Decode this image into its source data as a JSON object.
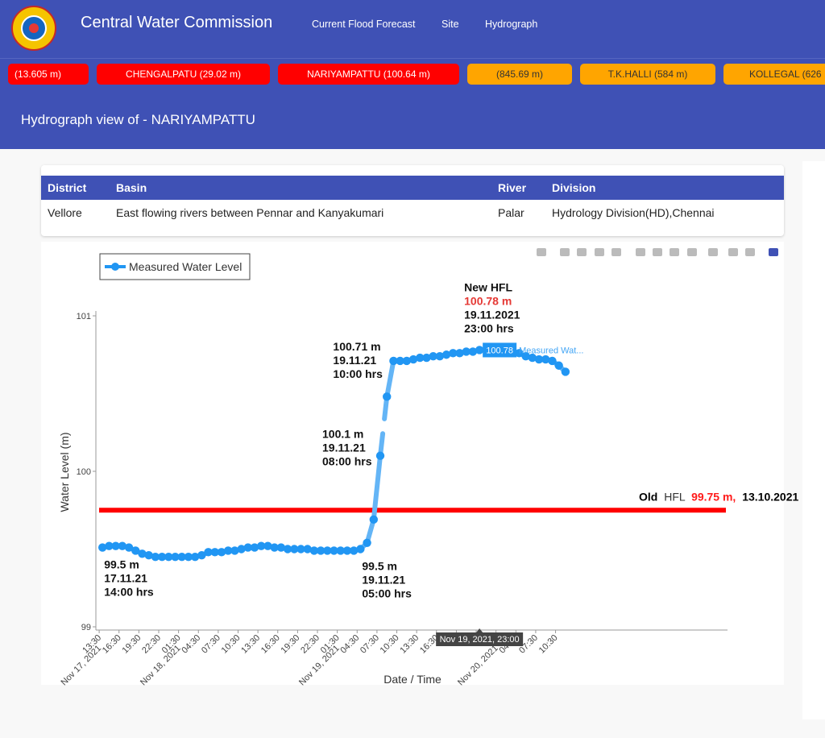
{
  "header": {
    "brand": "Central Water Commission",
    "nav": [
      "Current Flood Forecast",
      "Site",
      "Hydrograph"
    ]
  },
  "ticker": [
    {
      "text": "(13.605 m)",
      "level": "red"
    },
    {
      "text": "CHENGALPATU (29.02 m)",
      "level": "red"
    },
    {
      "text": "NARIYAMPATTU (100.64 m)",
      "level": "red"
    },
    {
      "text": "(845.69 m)",
      "level": "orange"
    },
    {
      "text": "T.K.HALLI (584 m)",
      "level": "orange"
    },
    {
      "text": "KOLLEGAL (626",
      "level": "orange"
    }
  ],
  "colors": {
    "primary": "#3f51b5",
    "alert_red": "#ff0000",
    "warn_orange": "#ffa500",
    "series": "#2196f3"
  },
  "page_heading": "Hydrograph view of - NARIYAMPATTU",
  "station_table": {
    "headers": [
      "District",
      "Basin",
      "River",
      "Division"
    ],
    "row": [
      "Vellore",
      "East flowing rivers between Pennar and Kanyakumari",
      "Palar",
      "Hydrology Division(HD),Chennai"
    ]
  },
  "toolbar_icons": [
    "camera-icon",
    "zoom-icon",
    "pan-icon",
    "box-select-icon",
    "lasso-select-icon",
    "zoom-in-icon",
    "zoom-out-icon",
    "autoscale-icon",
    "reset-axes-icon",
    "spike-lines-icon",
    "hover-closest-icon",
    "hover-compare-icon",
    "plotly-logo-icon"
  ],
  "chart_data": {
    "type": "line",
    "legend": "Measured Water Level",
    "legend_position": "top-left",
    "xlabel": "Date / Time",
    "ylabel": "Water Level (m)",
    "ylim": [
      99,
      101
    ],
    "yticks": [
      99,
      100,
      101
    ],
    "x_range": [
      "2021-11-17 13:00",
      "2021-11-21 12:30"
    ],
    "x_ticks": [
      {
        "t": "2021-11-17 13:30",
        "label": "13:30",
        "sub": "Nov 17, 2021"
      },
      {
        "t": "2021-11-17 16:30",
        "label": "16:30",
        "sub": ""
      },
      {
        "t": "2021-11-17 19:30",
        "label": "19:30",
        "sub": ""
      },
      {
        "t": "2021-11-17 22:30",
        "label": "22:30",
        "sub": ""
      },
      {
        "t": "2021-11-18 01:30",
        "label": "01:30",
        "sub": "Nov 18, 2021"
      },
      {
        "t": "2021-11-18 04:30",
        "label": "04:30",
        "sub": ""
      },
      {
        "t": "2021-11-18 07:30",
        "label": "07:30",
        "sub": ""
      },
      {
        "t": "2021-11-18 10:30",
        "label": "10:30",
        "sub": ""
      },
      {
        "t": "2021-11-18 13:30",
        "label": "13:30",
        "sub": ""
      },
      {
        "t": "2021-11-18 16:30",
        "label": "16:30",
        "sub": ""
      },
      {
        "t": "2021-11-18 19:30",
        "label": "19:30",
        "sub": ""
      },
      {
        "t": "2021-11-18 22:30",
        "label": "22:30",
        "sub": ""
      },
      {
        "t": "2021-11-19 01:30",
        "label": "01:30",
        "sub": "Nov 19, 2021"
      },
      {
        "t": "2021-11-19 04:30",
        "label": "04:30",
        "sub": ""
      },
      {
        "t": "2021-11-19 07:30",
        "label": "07:30",
        "sub": ""
      },
      {
        "t": "2021-11-19 10:30",
        "label": "10:30",
        "sub": ""
      },
      {
        "t": "2021-11-19 13:30",
        "label": "13:30",
        "sub": ""
      },
      {
        "t": "2021-11-19 16:30",
        "label": "16:30",
        "sub": ""
      },
      {
        "t": "2021-11-19 19:30",
        "label": "19",
        "sub": ""
      },
      {
        "t": "2021-11-19 22:30",
        "label": "22",
        "sub": ""
      },
      {
        "t": "2021-11-20 01:30",
        "label": "01:",
        "sub": "Nov 20, 2021"
      },
      {
        "t": "2021-11-20 04:30",
        "label": "04:30",
        "sub": ""
      },
      {
        "t": "2021-11-20 07:30",
        "label": "07:30",
        "sub": ""
      },
      {
        "t": "2021-11-20 10:30",
        "label": "10:30",
        "sub": ""
      }
    ],
    "series": [
      {
        "name": "Measured Water Level",
        "x": [
          "2021-11-17 14:00",
          "2021-11-17 15:00",
          "2021-11-17 16:00",
          "2021-11-17 17:00",
          "2021-11-17 18:00",
          "2021-11-17 19:00",
          "2021-11-17 20:00",
          "2021-11-17 21:00",
          "2021-11-17 22:00",
          "2021-11-17 23:00",
          "2021-11-18 00:00",
          "2021-11-18 01:00",
          "2021-11-18 02:00",
          "2021-11-18 03:00",
          "2021-11-18 04:00",
          "2021-11-18 05:00",
          "2021-11-18 06:00",
          "2021-11-18 07:00",
          "2021-11-18 08:00",
          "2021-11-18 09:00",
          "2021-11-18 10:00",
          "2021-11-18 11:00",
          "2021-11-18 12:00",
          "2021-11-18 13:00",
          "2021-11-18 14:00",
          "2021-11-18 15:00",
          "2021-11-18 16:00",
          "2021-11-18 17:00",
          "2021-11-18 18:00",
          "2021-11-18 19:00",
          "2021-11-18 20:00",
          "2021-11-18 21:00",
          "2021-11-18 22:00",
          "2021-11-18 23:00",
          "2021-11-19 00:00",
          "2021-11-19 01:00",
          "2021-11-19 02:00",
          "2021-11-19 03:00",
          "2021-11-19 04:00",
          "2021-11-19 05:00",
          "2021-11-19 06:00",
          "2021-11-19 07:00",
          "2021-11-19 08:00",
          "2021-11-19 09:00",
          "2021-11-19 10:00",
          "2021-11-19 11:00",
          "2021-11-19 12:00",
          "2021-11-19 13:00",
          "2021-11-19 14:00",
          "2021-11-19 15:00",
          "2021-11-19 16:00",
          "2021-11-19 17:00",
          "2021-11-19 18:00",
          "2021-11-19 19:00",
          "2021-11-19 20:00",
          "2021-11-19 21:00",
          "2021-11-19 22:00",
          "2021-11-19 23:00",
          "2021-11-20 05:00",
          "2021-11-20 06:00",
          "2021-11-20 07:00",
          "2021-11-20 08:00",
          "2021-11-20 09:00",
          "2021-11-20 10:00",
          "2021-11-20 11:00",
          "2021-11-20 12:00"
        ],
        "y": [
          99.51,
          99.52,
          99.52,
          99.52,
          99.51,
          99.49,
          99.47,
          99.46,
          99.45,
          99.45,
          99.45,
          99.45,
          99.45,
          99.45,
          99.45,
          99.46,
          99.48,
          99.48,
          99.48,
          99.49,
          99.49,
          99.5,
          99.51,
          99.51,
          99.52,
          99.52,
          99.51,
          99.51,
          99.5,
          99.5,
          99.5,
          99.5,
          99.49,
          99.49,
          99.49,
          99.49,
          99.49,
          99.49,
          99.49,
          99.5,
          99.54,
          99.69,
          100.1,
          100.48,
          100.71,
          100.71,
          100.71,
          100.72,
          100.73,
          100.73,
          100.74,
          100.74,
          100.75,
          100.76,
          100.76,
          100.77,
          100.77,
          100.78,
          100.76,
          100.74,
          100.73,
          100.72,
          100.72,
          100.71,
          100.68,
          100.64
        ]
      }
    ],
    "gaps": [
      {
        "from": "2021-11-19 08:00",
        "to": "2021-11-19 09:00"
      }
    ],
    "threshold": {
      "value": 99.75,
      "label_prefix": "Old",
      "label_mid": "HFL",
      "value_text": "99.75 m,",
      "date_text": "13.10.2021",
      "color": "#ff0000"
    },
    "annotations": [
      {
        "lines": [
          "99.5 m",
          "17.11.21",
          "14:00 hrs"
        ],
        "at": [
          "2021-11-17 14:00",
          99.51
        ],
        "anchor": "below"
      },
      {
        "lines": [
          "99.5 m",
          "19.11.21",
          "05:00 hrs"
        ],
        "at": [
          "2021-11-19 05:00",
          99.5
        ],
        "anchor": "below"
      },
      {
        "lines": [
          "100.1 m",
          "19.11.21",
          "08:00 hrs"
        ],
        "at": [
          "2021-11-19 08:00",
          100.1
        ],
        "anchor": "left"
      },
      {
        "lines": [
          "100.71 m",
          "19.11.21",
          "10:00 hrs"
        ],
        "at": [
          "2021-11-19 10:00",
          100.71
        ],
        "anchor": "left-top"
      },
      {
        "lines": [
          "New HFL",
          "100.78 m",
          "19.11.2021",
          "23:00 hrs"
        ],
        "at": [
          "2021-11-19 23:00",
          100.78
        ],
        "anchor": "top",
        "red_line": 1
      }
    ],
    "hover": {
      "at": [
        "2021-11-19 23:00",
        100.78
      ],
      "value_text": "100.78",
      "series_text": "Measured Wat...",
      "x_text": "Nov 19, 2021, 23:00"
    },
    "grid": false
  }
}
